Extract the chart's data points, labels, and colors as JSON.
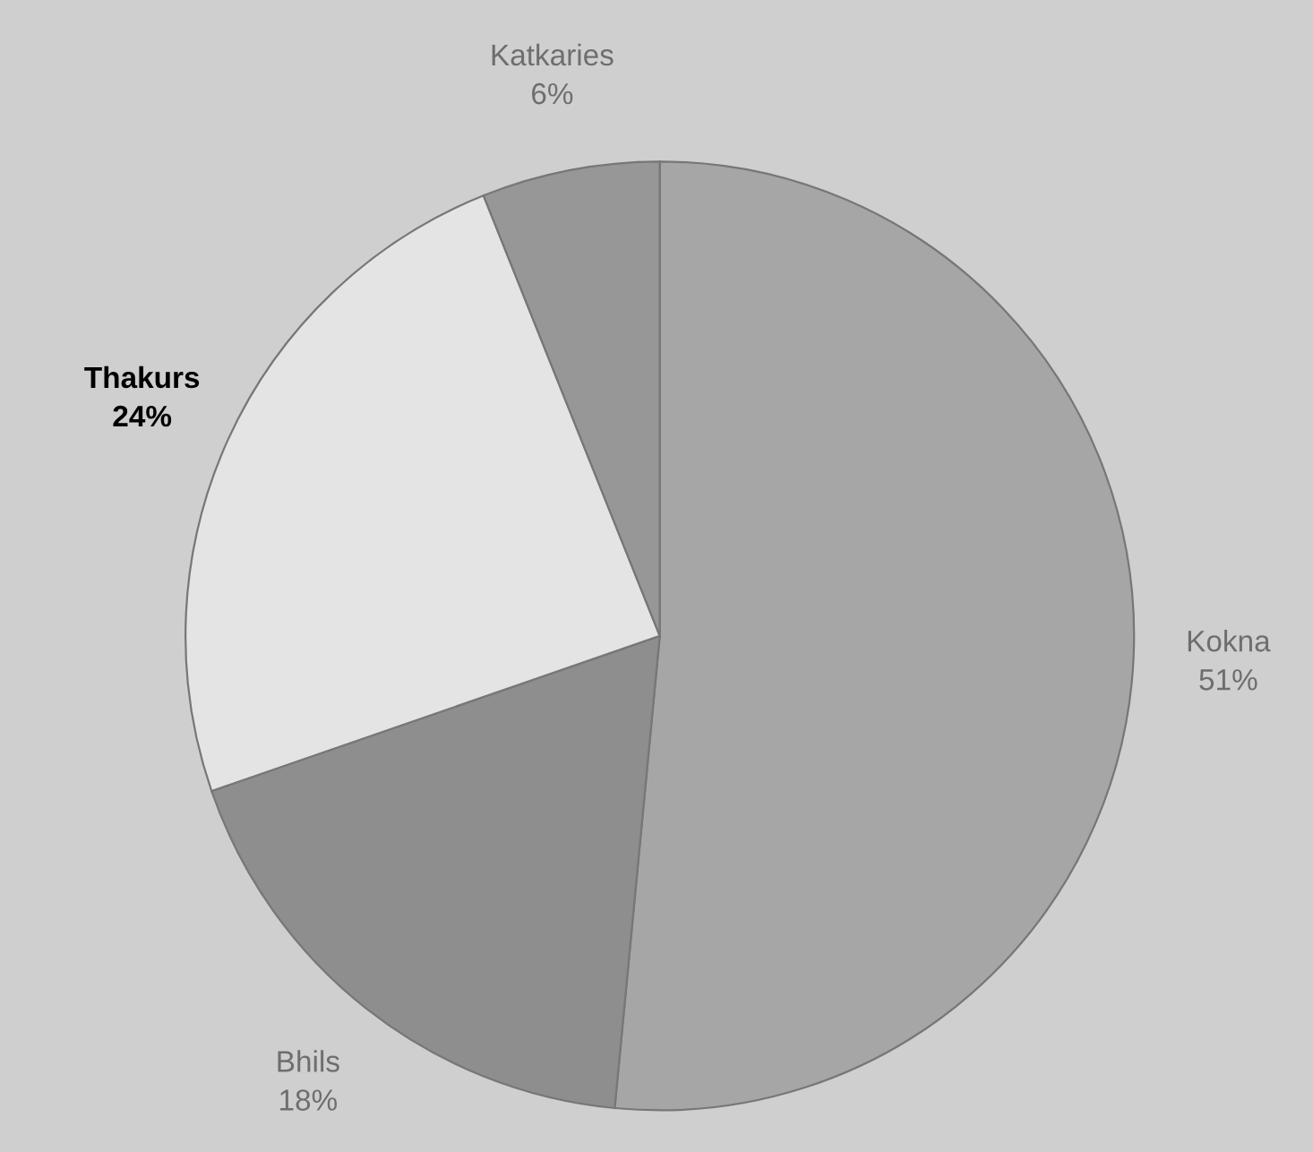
{
  "chart_data": {
    "type": "pie",
    "categories": [
      "Kokna",
      "Bhils",
      "Thakurs",
      "Katkaries"
    ],
    "values": [
      51,
      18,
      24,
      6
    ],
    "value_labels": [
      "51%",
      "18%",
      "24%",
      "6%"
    ],
    "colors": [
      "#a6a6a6",
      "#8e8e8e",
      "#e4e4e4",
      "#979797"
    ]
  }
}
